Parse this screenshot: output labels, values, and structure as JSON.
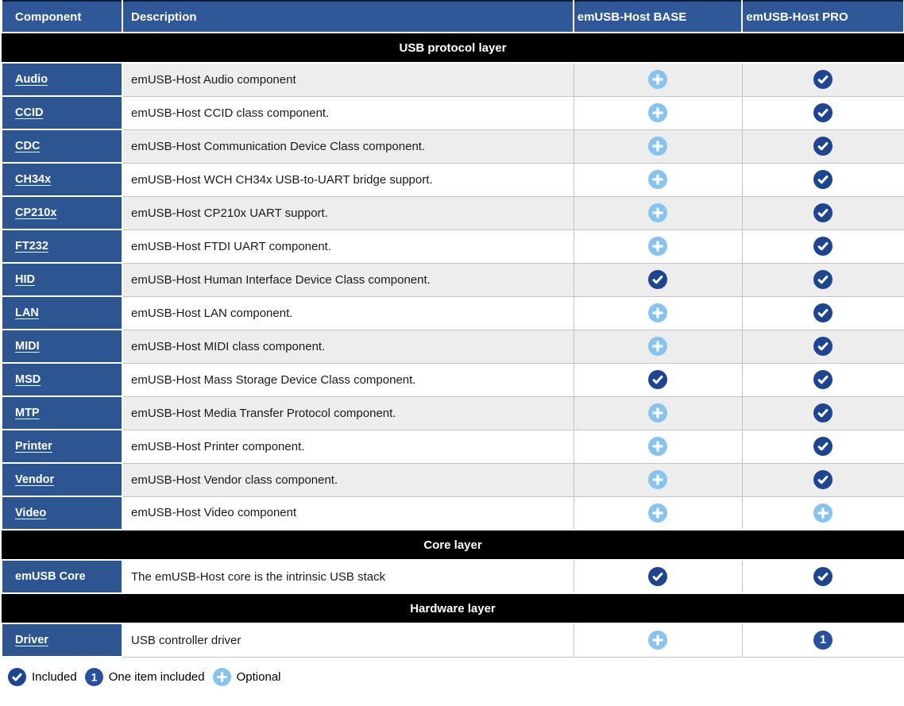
{
  "table": {
    "columns": [
      "Component",
      "Description",
      "emUSB-Host BASE",
      "emUSB-Host PRO"
    ],
    "sections": [
      {
        "title": "USB protocol layer",
        "rows": [
          {
            "component": "Audio",
            "link": true,
            "description": "emUSB-Host Audio component",
            "base": "optional",
            "pro": "included"
          },
          {
            "component": "CCID",
            "link": true,
            "description": "emUSB-Host CCID class component.",
            "base": "optional",
            "pro": "included"
          },
          {
            "component": "CDC",
            "link": true,
            "description": "emUSB-Host Communication Device Class component.",
            "base": "optional",
            "pro": "included"
          },
          {
            "component": "CH34x",
            "link": true,
            "description": "emUSB-Host WCH CH34x USB-to-UART bridge support.",
            "base": "optional",
            "pro": "included"
          },
          {
            "component": "CP210x",
            "link": true,
            "description": "emUSB-Host CP210x UART support.",
            "base": "optional",
            "pro": "included"
          },
          {
            "component": "FT232",
            "link": true,
            "description": "emUSB-Host FTDI UART component.",
            "base": "optional",
            "pro": "included"
          },
          {
            "component": "HID",
            "link": true,
            "description": "emUSB-Host Human Interface Device Class component.",
            "base": "included",
            "pro": "included"
          },
          {
            "component": "LAN",
            "link": true,
            "description": "emUSB-Host LAN component.",
            "base": "optional",
            "pro": "included"
          },
          {
            "component": "MIDI",
            "link": true,
            "description": "emUSB-Host MIDI class component.",
            "base": "optional",
            "pro": "included"
          },
          {
            "component": "MSD",
            "link": true,
            "description": "emUSB-Host Mass Storage Device Class component.",
            "base": "included",
            "pro": "included"
          },
          {
            "component": "MTP",
            "link": true,
            "description": "emUSB-Host Media Transfer Protocol component.",
            "base": "optional",
            "pro": "included"
          },
          {
            "component": "Printer",
            "link": true,
            "description": "emUSB-Host Printer component.",
            "base": "optional",
            "pro": "included"
          },
          {
            "component": "Vendor",
            "link": true,
            "description": "emUSB-Host Vendor class component.",
            "base": "optional",
            "pro": "included"
          },
          {
            "component": "Video",
            "link": true,
            "description": "emUSB-Host Video component",
            "base": "optional",
            "pro": "optional"
          }
        ]
      },
      {
        "title": "Core layer",
        "rows": [
          {
            "component": "emUSB Core",
            "link": false,
            "description": "The emUSB-Host core is the intrinsic USB stack",
            "base": "included",
            "pro": "included"
          }
        ]
      },
      {
        "title": "Hardware layer",
        "rows": [
          {
            "component": "Driver",
            "link": true,
            "description": "USB controller driver",
            "base": "optional",
            "pro": "one"
          }
        ]
      }
    ]
  },
  "legend": [
    {
      "icon": "included",
      "label": "Included"
    },
    {
      "icon": "one",
      "label": "One item included"
    },
    {
      "icon": "optional",
      "label": "Optional"
    }
  ],
  "icon_names": {
    "included": "included-check-icon",
    "optional": "optional-plus-icon",
    "one": "one-item-included-icon"
  },
  "colors": {
    "header_blue": "#2e5897",
    "cell_blue": "#2c5591",
    "band_black": "#000000",
    "included_navy": "#1e4591",
    "one_blue": "#27509e",
    "optional_light_blue": "#87c3f1",
    "row_alt_gray": "#ededed",
    "border_gray": "#c3c3c3"
  }
}
